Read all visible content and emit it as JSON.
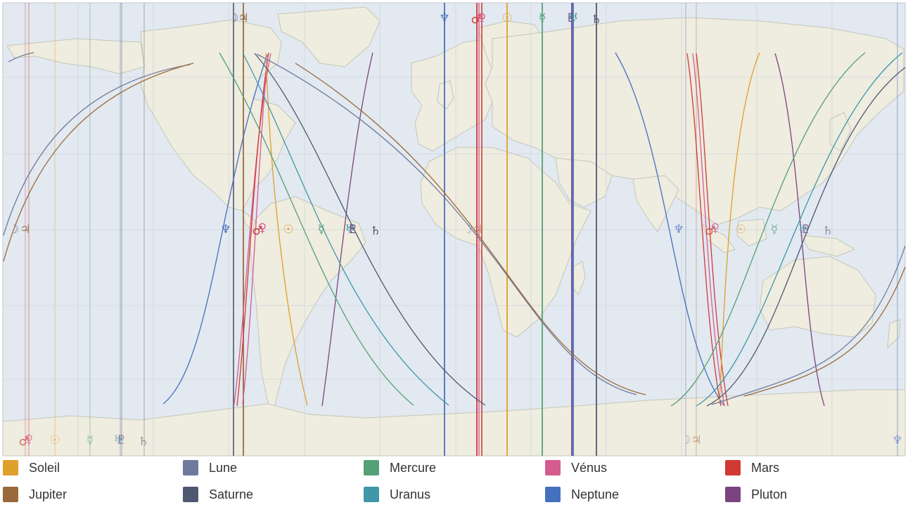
{
  "map": {
    "colors": {
      "ocean": "#e2e9f0",
      "land": "#efece0",
      "coast": "#c3c7b9",
      "grid": "#cfd7de",
      "frame": "#bfc7cf"
    },
    "planets": [
      {
        "key": "sun",
        "name": "Soleil",
        "color": "#e0a02c",
        "glyph": "☉"
      },
      {
        "key": "moon",
        "name": "Lune",
        "color": "#6f7a9c",
        "glyph": "☽"
      },
      {
        "key": "mercury",
        "name": "Mercure",
        "color": "#55a077",
        "glyph": "☿"
      },
      {
        "key": "venus",
        "name": "Vénus",
        "color": "#d45c90",
        "glyph": "♀"
      },
      {
        "key": "mars",
        "name": "Mars",
        "color": "#d03a33",
        "glyph": "♂"
      },
      {
        "key": "jupiter",
        "name": "Jupiter",
        "color": "#9a6a3c",
        "glyph": "♃"
      },
      {
        "key": "saturn",
        "name": "Saturne",
        "color": "#4f5870",
        "glyph": "♄"
      },
      {
        "key": "uranus",
        "name": "Uranus",
        "color": "#3f97a8",
        "glyph": "♅"
      },
      {
        "key": "neptune",
        "name": "Neptune",
        "color": "#4470c0",
        "glyph": "♆"
      },
      {
        "key": "pluto",
        "name": "Pluton",
        "color": "#7a4480",
        "glyph": "♇"
      }
    ]
  },
  "legend": {
    "items": [
      {
        "key": "sun",
        "label": "Soleil",
        "color": "#e0a02c"
      },
      {
        "key": "moon",
        "label": "Lune",
        "color": "#6f7a9c"
      },
      {
        "key": "mercury",
        "label": "Mercure",
        "color": "#55a077"
      },
      {
        "key": "venus",
        "label": "Vénus",
        "color": "#d45c90"
      },
      {
        "key": "mars",
        "label": "Mars",
        "color": "#d03a33"
      },
      {
        "key": "jupiter",
        "label": "Jupiter",
        "color": "#9a6a3c"
      },
      {
        "key": "saturn",
        "label": "Saturne",
        "color": "#4f5870"
      },
      {
        "key": "uranus",
        "label": "Uranus",
        "color": "#3f97a8"
      },
      {
        "key": "neptune",
        "label": "Neptune",
        "color": "#4470c0"
      },
      {
        "key": "pluto",
        "label": "Pluton",
        "color": "#7a4480"
      }
    ]
  }
}
